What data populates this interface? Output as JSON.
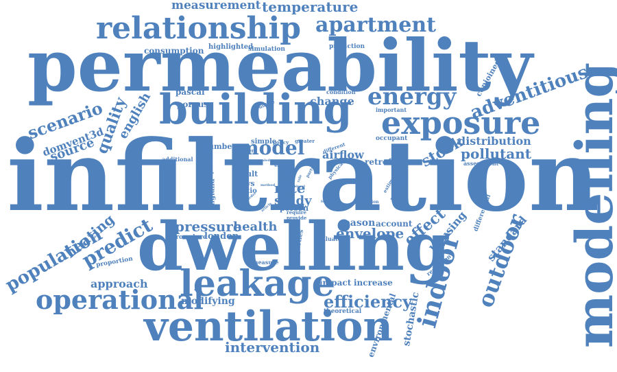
{
  "color": "#4f81bd",
  "words": [
    {
      "text": "infiltration"
    },
    {
      "text": "permeability"
    },
    {
      "text": "dwelling"
    },
    {
      "text": "modelling"
    },
    {
      "text": "building"
    },
    {
      "text": "ventilation"
    },
    {
      "text": "leakage"
    },
    {
      "text": "exposure"
    },
    {
      "text": "relationship"
    },
    {
      "text": "operational"
    },
    {
      "text": "indoor"
    },
    {
      "text": "apartment"
    },
    {
      "text": "energy"
    },
    {
      "text": "outdoor"
    },
    {
      "text": "adventitious"
    },
    {
      "text": "population"
    },
    {
      "text": "model"
    },
    {
      "text": "efficiency"
    },
    {
      "text": "predict"
    },
    {
      "text": "pressure"
    },
    {
      "text": "envelope"
    },
    {
      "text": "scenario"
    },
    {
      "text": "quality"
    },
    {
      "text": "english"
    },
    {
      "text": "intervention"
    },
    {
      "text": "temperature"
    },
    {
      "text": "measurement"
    },
    {
      "text": "stock"
    },
    {
      "text": "pollutant"
    },
    {
      "text": "health"
    },
    {
      "text": "heating"
    },
    {
      "text": "effect"
    },
    {
      "text": "distribution"
    },
    {
      "text": "housing"
    },
    {
      "text": "rate"
    },
    {
      "text": "study"
    },
    {
      "text": "approach"
    },
    {
      "text": "standard"
    },
    {
      "text": "stochastic"
    },
    {
      "text": "environmental"
    },
    {
      "text": "domvent3d"
    },
    {
      "text": "source"
    },
    {
      "text": "airflow"
    },
    {
      "text": "change"
    },
    {
      "text": "modifying"
    },
    {
      "text": "london"
    },
    {
      "text": "impact"
    },
    {
      "text": "increase"
    },
    {
      "text": "season"
    },
    {
      "text": "account"
    },
    {
      "text": "retrofit"
    },
    {
      "text": "pascal"
    },
    {
      "text": "porous"
    },
    {
      "text": "consumption"
    },
    {
      "text": "highlighted"
    },
    {
      "text": "simulation"
    },
    {
      "text": "prediction"
    },
    {
      "text": "conjoined"
    },
    {
      "text": "number"
    },
    {
      "text": "simple"
    },
    {
      "text": "result"
    },
    {
      "text": "qalys"
    },
    {
      "text": "ratio"
    },
    {
      "text": "england"
    },
    {
      "text": "facade"
    },
    {
      "text": "person"
    },
    {
      "text": "procedure"
    },
    {
      "text": "properties"
    },
    {
      "text": "evaluate"
    },
    {
      "text": "measure"
    },
    {
      "text": "proportion"
    },
    {
      "text": "theoretical"
    },
    {
      "text": "differential"
    },
    {
      "text": "reduction"
    },
    {
      "text": "assessment"
    },
    {
      "text": "occupant"
    },
    {
      "text": "important"
    },
    {
      "text": "condition"
    },
    {
      "text": "countrie"
    },
    {
      "text": "additional"
    },
    {
      "text": "potential"
    },
    {
      "text": "paper"
    },
    {
      "text": "policy"
    },
    {
      "text": "greater"
    },
    {
      "text": "different"
    },
    {
      "text": "physical"
    },
    {
      "text": "estimate"
    },
    {
      "text": "regulation"
    },
    {
      "text": "pollution"
    },
    {
      "text": "require"
    },
    {
      "text": "provide"
    },
    {
      "text": "fewer"
    },
    {
      "text": "tool"
    },
    {
      "text": "level"
    },
    {
      "text": "year"
    },
    {
      "text": "party"
    },
    {
      "text": "wall"
    },
    {
      "text": "fabric"
    },
    {
      "text": "order"
    },
    {
      "text": "article"
    },
    {
      "text": "sealed"
    },
    {
      "text": "rule"
    },
    {
      "text": "method"
    },
    {
      "text": "total"
    },
    {
      "text": "cost"
    }
  ]
}
